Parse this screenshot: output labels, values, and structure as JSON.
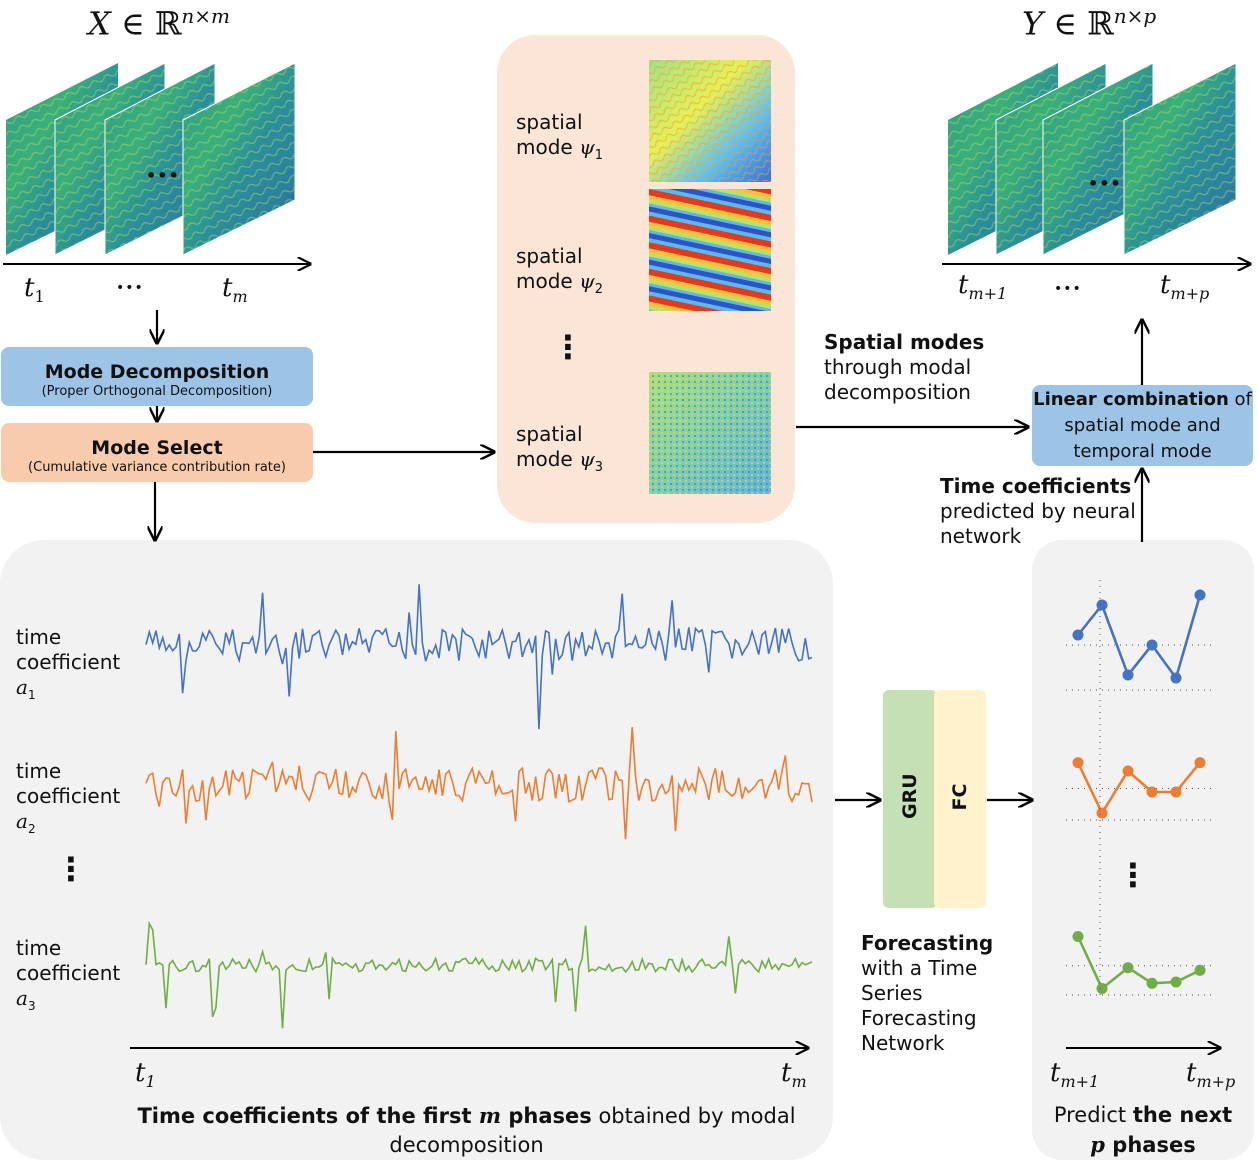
{
  "input": {
    "formula_var": "X",
    "formula_rest": " ∈ ℝ",
    "formula_exp": "n×m",
    "dots": "•••",
    "t_start": "t",
    "t_start_sub": "1",
    "t_end": "t",
    "t_end_sub": "m"
  },
  "output": {
    "formula_var": "Y",
    "formula_rest": " ∈ ℝ",
    "formula_exp": "n×p",
    "dots": "•••",
    "t_start": "t",
    "t_start_sub": "m+1",
    "t_end": "t",
    "t_end_sub": "m+p"
  },
  "mode_decomposition": {
    "title": "Mode Decomposition",
    "subtitle": "(Proper Orthogonal Decomposition)"
  },
  "mode_select": {
    "title": "Mode Select",
    "subtitle": "(Cumulative variance contribution rate)"
  },
  "spatial_panel": {
    "modes": [
      {
        "line1": "spatial",
        "line2": "mode ",
        "sym": "ψ",
        "sub": "1"
      },
      {
        "line1": "spatial",
        "line2": "mode ",
        "sym": "ψ",
        "sub": "2"
      },
      {
        "line1": "spatial",
        "line2": "mode ",
        "sym": "ψ",
        "sub": "3"
      }
    ],
    "vdots": "⋮"
  },
  "spatial_note": {
    "bold": "Spatial modes",
    "line2": "through modal",
    "line3": "decomposition"
  },
  "linear_combination": {
    "bold": "Linear combination",
    "rest1": " of",
    "line2": "spatial mode and",
    "line3": "temporal mode"
  },
  "time_note": {
    "bold": "Time coefficients",
    "line2": "predicted by neural",
    "line3": "network"
  },
  "coefficients": {
    "items": [
      {
        "line1": "time",
        "line2": "coefficient",
        "sym": "a",
        "sub": "1",
        "color": "#4472c4"
      },
      {
        "line1": "time",
        "line2": "coefficient",
        "sym": "a",
        "sub": "2",
        "color": "#ed7d31"
      },
      {
        "line1": "time",
        "line2": "coefficient",
        "sym": "a",
        "sub": "3",
        "color": "#70ad47"
      }
    ],
    "vdots": "⋮",
    "axis_start": "t",
    "axis_start_sub": "1",
    "axis_end": "t",
    "axis_end_sub": "m",
    "caption_bold1": "Time coefficients of the first ",
    "caption_m": "m",
    "caption_bold2": " phases",
    "caption_rest": " obtained by modal",
    "caption_line2": "decomposition"
  },
  "network": {
    "gru": "GRU",
    "fc": "FC",
    "gru_color": "#c5e0b4",
    "fc_color": "#fff2cc",
    "caption_bold": "Forecasting",
    "caption_lines": [
      "with a Time",
      "Series",
      "Forecasting",
      "Network"
    ]
  },
  "prediction": {
    "vdots": "⋮",
    "axis_start": "t",
    "axis_start_sub": "m+1",
    "axis_end": "t",
    "axis_end_sub": "m+p",
    "caption_pre": "Predict ",
    "caption_bold": "the next",
    "caption_p": "p",
    "caption_bold2": " phases",
    "series": [
      {
        "color": "#4472c4",
        "values": [
          0.55,
          0.85,
          0.15,
          0.45,
          0.12,
          0.95
        ]
      },
      {
        "color": "#ed7d31",
        "values": [
          0.82,
          0.1,
          0.7,
          0.4,
          0.4,
          0.82
        ]
      },
      {
        "color": "#70ad47",
        "values": [
          0.9,
          0.1,
          0.42,
          0.18,
          0.2,
          0.38
        ]
      }
    ]
  },
  "colors": {
    "blue_box": "#9dc3e6",
    "orange_box": "#f8cbad",
    "spatial_panel": "#fbe5d6",
    "gray_panel": "#f2f2f2"
  }
}
